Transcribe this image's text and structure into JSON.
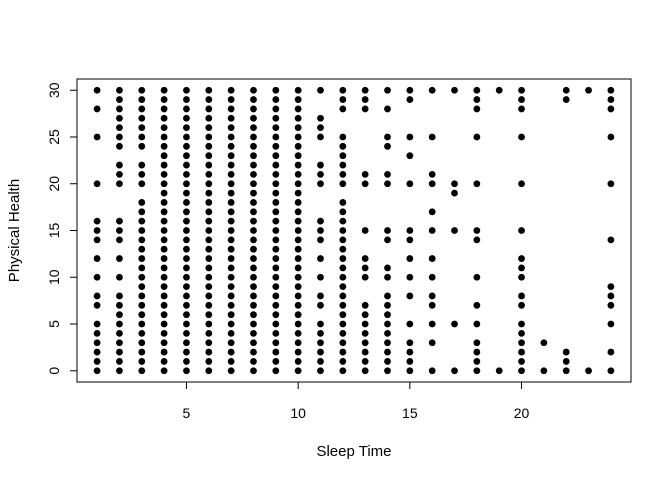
{
  "chart_data": {
    "type": "scatter",
    "title": "",
    "xlabel": "Sleep Time",
    "ylabel": "Physical Health",
    "xlim": [
      0.1,
      24.9
    ],
    "ylim": [
      -1.2,
      31.2
    ],
    "xticks": [
      5,
      10,
      15,
      20
    ],
    "yticks": [
      0,
      5,
      10,
      15,
      20,
      25,
      30
    ],
    "grid": false,
    "legend": "none",
    "point_color": "#000000",
    "points": {
      "1": [
        0,
        1,
        2,
        3,
        4,
        5,
        7,
        8,
        10,
        12,
        14,
        15,
        16,
        20,
        25,
        28,
        30
      ],
      "2": [
        0,
        1,
        2,
        3,
        4,
        5,
        6,
        7,
        8,
        10,
        12,
        14,
        15,
        16,
        20,
        21,
        22,
        24,
        25,
        26,
        27,
        28,
        29,
        30
      ],
      "3": [
        0,
        1,
        2,
        3,
        4,
        5,
        6,
        7,
        8,
        9,
        10,
        11,
        12,
        13,
        14,
        15,
        16,
        17,
        18,
        20,
        21,
        22,
        24,
        25,
        26,
        27,
        28,
        29,
        30
      ],
      "4": [
        0,
        1,
        2,
        3,
        4,
        5,
        6,
        7,
        8,
        9,
        10,
        11,
        12,
        13,
        14,
        15,
        16,
        17,
        18,
        19,
        20,
        21,
        22,
        23,
        24,
        25,
        26,
        27,
        28,
        29,
        30
      ],
      "5": [
        0,
        1,
        2,
        3,
        4,
        5,
        6,
        7,
        8,
        9,
        10,
        11,
        12,
        13,
        14,
        15,
        16,
        17,
        18,
        19,
        20,
        21,
        22,
        23,
        24,
        25,
        26,
        27,
        28,
        29,
        30
      ],
      "6": [
        0,
        1,
        2,
        3,
        4,
        5,
        6,
        7,
        8,
        9,
        10,
        11,
        12,
        13,
        14,
        15,
        16,
        17,
        18,
        19,
        20,
        21,
        22,
        23,
        24,
        25,
        26,
        27,
        28,
        29,
        30
      ],
      "7": [
        0,
        1,
        2,
        3,
        4,
        5,
        6,
        7,
        8,
        9,
        10,
        11,
        12,
        13,
        14,
        15,
        16,
        17,
        18,
        19,
        20,
        21,
        22,
        23,
        24,
        25,
        26,
        27,
        28,
        29,
        30
      ],
      "8": [
        0,
        1,
        2,
        3,
        4,
        5,
        6,
        7,
        8,
        9,
        10,
        11,
        12,
        13,
        14,
        15,
        16,
        17,
        18,
        19,
        20,
        21,
        22,
        23,
        24,
        25,
        26,
        27,
        28,
        29,
        30
      ],
      "9": [
        0,
        1,
        2,
        3,
        4,
        5,
        6,
        7,
        8,
        9,
        10,
        11,
        12,
        13,
        14,
        15,
        16,
        17,
        18,
        19,
        20,
        21,
        22,
        23,
        24,
        25,
        26,
        27,
        28,
        29,
        30
      ],
      "10": [
        0,
        1,
        2,
        3,
        4,
        5,
        6,
        7,
        8,
        9,
        10,
        11,
        12,
        13,
        14,
        15,
        16,
        17,
        18,
        19,
        20,
        21,
        22,
        23,
        24,
        25,
        26,
        27,
        28,
        29,
        30
      ],
      "11": [
        0,
        1,
        2,
        3,
        4,
        5,
        7,
        8,
        10,
        12,
        14,
        15,
        16,
        20,
        21,
        22,
        25,
        26,
        27,
        30
      ],
      "12": [
        0,
        1,
        2,
        3,
        4,
        5,
        6,
        7,
        8,
        9,
        10,
        11,
        12,
        13,
        14,
        15,
        16,
        17,
        18,
        20,
        21,
        22,
        23,
        24,
        25,
        28,
        29,
        30
      ],
      "13": [
        0,
        1,
        2,
        3,
        4,
        5,
        6,
        7,
        10,
        11,
        12,
        15,
        20,
        21,
        28,
        29,
        30
      ],
      "14": [
        0,
        1,
        2,
        3,
        4,
        5,
        6,
        7,
        8,
        10,
        11,
        14,
        15,
        20,
        21,
        24,
        25,
        28,
        30
      ],
      "15": [
        0,
        1,
        2,
        3,
        5,
        8,
        10,
        12,
        14,
        15,
        20,
        23,
        25,
        29,
        30
      ],
      "16": [
        0,
        3,
        5,
        7,
        8,
        10,
        12,
        15,
        17,
        20,
        21,
        25,
        30
      ],
      "17": [
        0,
        5,
        15,
        19,
        20,
        30
      ],
      "18": [
        0,
        1,
        2,
        3,
        5,
        7,
        10,
        14,
        15,
        20,
        25,
        28,
        29,
        30
      ],
      "19": [
        0,
        30
      ],
      "20": [
        0,
        1,
        2,
        3,
        4,
        5,
        7,
        8,
        10,
        11,
        12,
        15,
        20,
        25,
        28,
        29,
        30
      ],
      "21": [
        0,
        3
      ],
      "22": [
        0,
        1,
        2,
        29,
        30
      ],
      "23": [
        0,
        30
      ],
      "24": [
        0,
        2,
        5,
        7,
        8,
        9,
        14,
        20,
        25,
        28,
        29,
        30
      ]
    }
  }
}
